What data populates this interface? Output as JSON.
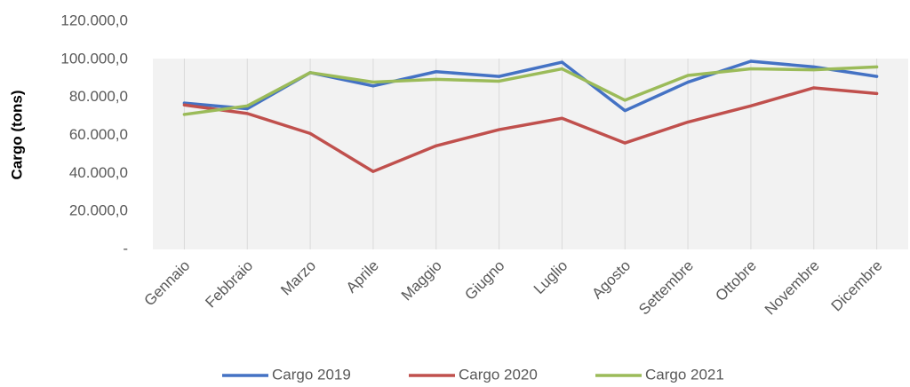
{
  "chart_data": {
    "type": "line",
    "ylabel": "Cargo (tons)",
    "categories": [
      "Gennaio",
      "Febbraio",
      "Marzo",
      "Aprile",
      "Maggio",
      "Giugno",
      "Luglio",
      "Agosto",
      "Settembre",
      "Ottobre",
      "Novembre",
      "Dicembre"
    ],
    "series": [
      {
        "name": "Cargo 2019",
        "color": "#4472c4",
        "values": [
          77000,
          74000,
          93000,
          86000,
          93500,
          91000,
          98500,
          73000,
          88000,
          99000,
          96000,
          91000
        ]
      },
      {
        "name": "Cargo 2020",
        "color": "#c0504d",
        "values": [
          76000,
          71500,
          61000,
          41000,
          54500,
          63000,
          69000,
          56000,
          67000,
          75500,
          85000,
          82000
        ]
      },
      {
        "name": "Cargo 2021",
        "color": "#9bbb59",
        "values": [
          71000,
          75500,
          93000,
          88000,
          89500,
          88500,
          95000,
          78500,
          91500,
          95000,
          94500,
          96000
        ]
      }
    ],
    "ylim": [
      0,
      120000
    ],
    "yticks": [
      {
        "value": 0,
        "label": "-"
      },
      {
        "value": 20000,
        "label": "20.000,0"
      },
      {
        "value": 40000,
        "label": "40.000,0"
      },
      {
        "value": 60000,
        "label": "60.000,0"
      },
      {
        "value": 80000,
        "label": "80.000,0"
      },
      {
        "value": 100000,
        "label": "100.000,0"
      },
      {
        "value": 120000,
        "label": "120.000,0"
      }
    ],
    "grid": false,
    "legend": "bottom"
  }
}
